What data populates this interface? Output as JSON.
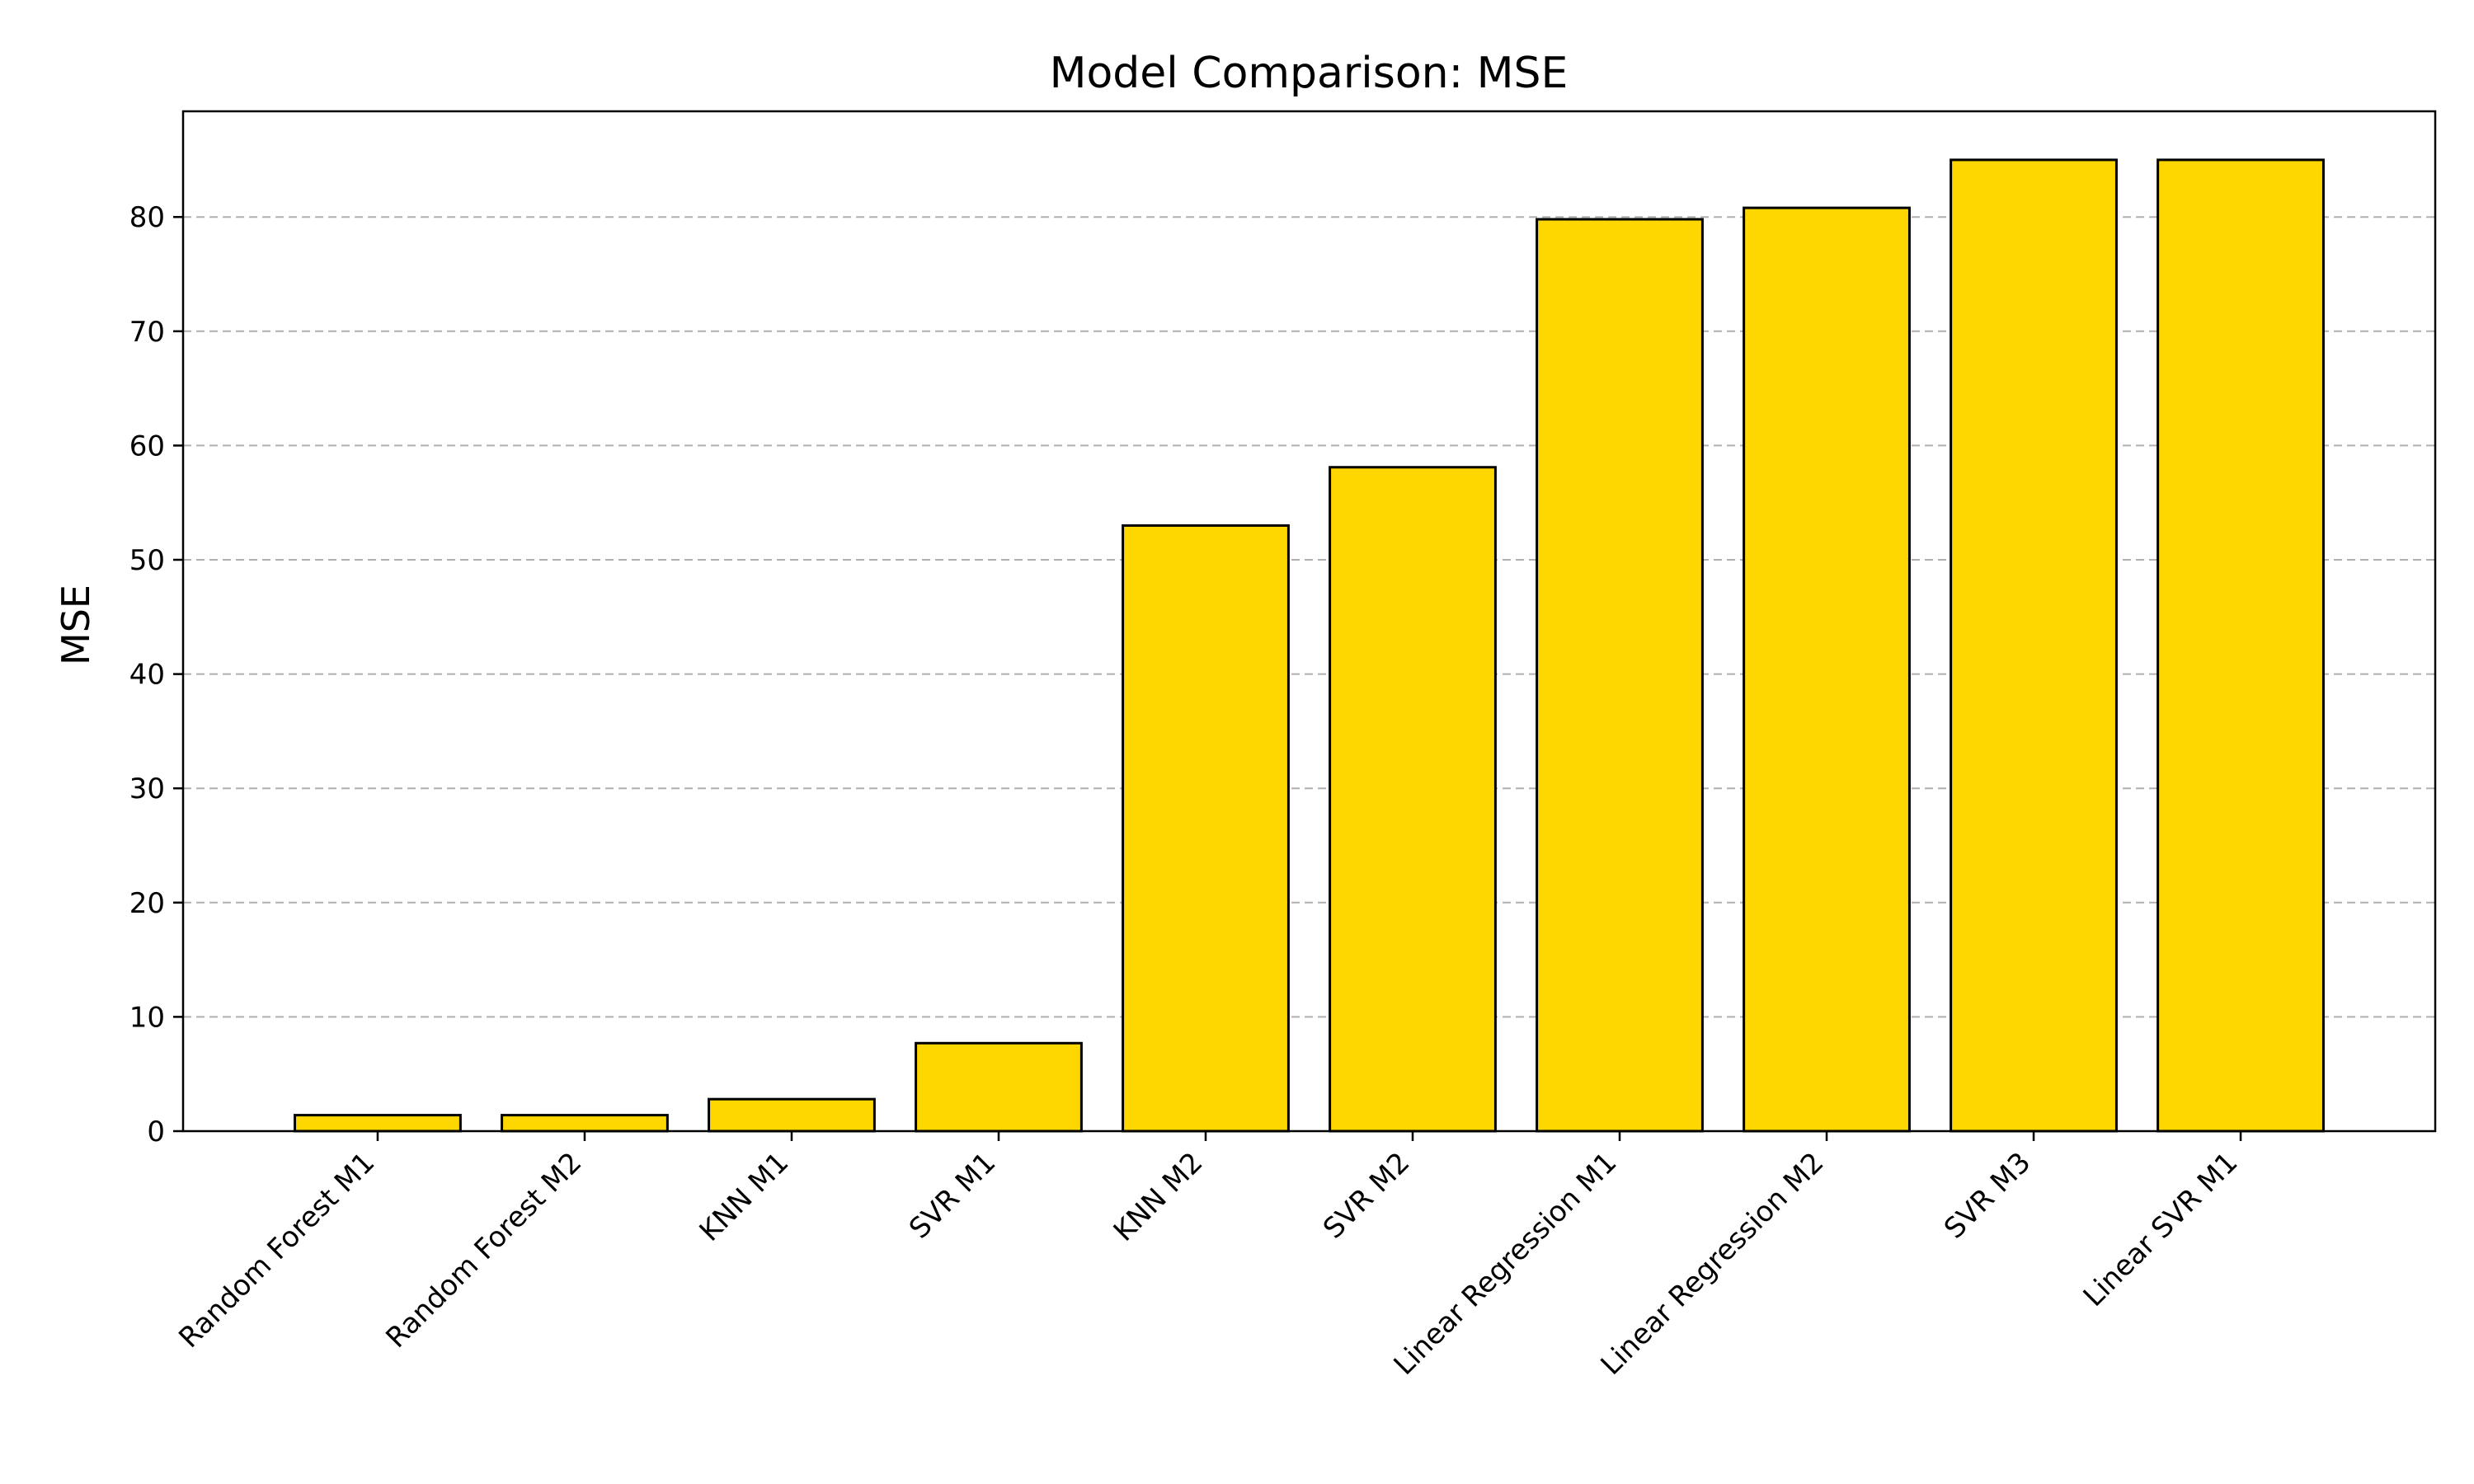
{
  "chart_data": {
    "type": "bar",
    "title": "Model Comparison: MSE",
    "xlabel": "",
    "ylabel": "MSE",
    "categories": [
      "Random Forest M1",
      "Random Forest M2",
      "KNN M1",
      "SVR M1",
      "KNN M2",
      "SVR M2",
      "Linear Regression M1",
      "Linear Regression M2",
      "SVR M3",
      "Linear SVR M1"
    ],
    "values": [
      1.4,
      1.4,
      2.8,
      7.7,
      53.0,
      58.1,
      79.8,
      80.8,
      85.0,
      85.0
    ],
    "ylim": [
      0,
      89.25
    ],
    "yticks": [
      0,
      10,
      20,
      30,
      40,
      50,
      60,
      70,
      80
    ],
    "grid": "y-dashed",
    "bar_color": "#FFD700",
    "edge_color": "#000000"
  }
}
